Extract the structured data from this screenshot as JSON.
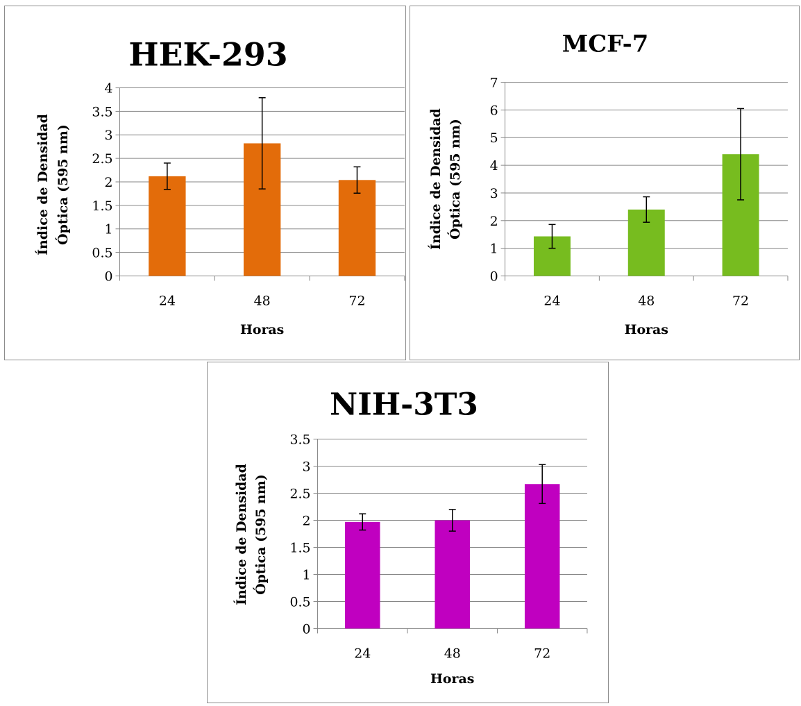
{
  "chart_data": [
    {
      "type": "bar",
      "title": "HEK-293",
      "xlabel": "Horas",
      "ylabel_lines": [
        "Índice de Densidad",
        "Óptica (595 nm)"
      ],
      "categories": [
        "24",
        "48",
        "72"
      ],
      "values": [
        2.12,
        2.82,
        2.04
      ],
      "errors": [
        0.28,
        0.97,
        0.28
      ],
      "ylim": [
        0,
        4
      ],
      "yticks": [
        "0",
        "0.5",
        "1",
        "1.5",
        "2",
        "2.5",
        "3",
        "3.5",
        "4"
      ],
      "bar_color": "#e36c0a",
      "grid": true,
      "legend": "none"
    },
    {
      "type": "bar",
      "title": "MCF-7",
      "xlabel": "Horas",
      "ylabel_lines": [
        "Índice de Densidad",
        "Óptica (595 nm)"
      ],
      "categories": [
        "24",
        "48",
        "72"
      ],
      "values": [
        1.43,
        2.4,
        4.4
      ],
      "errors": [
        0.43,
        0.46,
        1.65
      ],
      "ylim": [
        0,
        7
      ],
      "yticks": [
        "0",
        "1",
        "2",
        "3",
        "4",
        "5",
        "6",
        "7"
      ],
      "bar_color": "#77bc1f",
      "grid": true,
      "legend": "none"
    },
    {
      "type": "bar",
      "title": "NIH-3T3",
      "xlabel": "Horas",
      "ylabel_lines": [
        "Índice de Densidad",
        "Óptica (595 nm)"
      ],
      "categories": [
        "24",
        "48",
        "72"
      ],
      "values": [
        1.97,
        2.0,
        2.67
      ],
      "errors": [
        0.15,
        0.2,
        0.36
      ],
      "ylim": [
        0,
        3.5
      ],
      "yticks": [
        "0",
        "0.5",
        "1",
        "1.5",
        "2",
        "2.5",
        "3",
        "3.5"
      ],
      "bar_color": "#c000c0",
      "grid": true,
      "legend": "none"
    }
  ]
}
